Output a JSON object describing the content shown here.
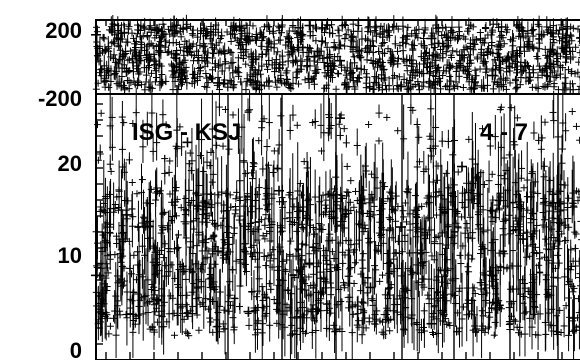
{
  "chart_data": [
    {
      "type": "scatter",
      "ylim": [
        -200,
        200
      ],
      "yticks": [
        "200",
        "-200"
      ],
      "marker": "plus",
      "color": "#000000",
      "series": [
        {
          "x": [
            0,
            60,
            120,
            180,
            240,
            300,
            360,
            420,
            480,
            540,
            600,
            660,
            720,
            780,
            840,
            900,
            960
          ],
          "y": [
            120,
            -80,
            150,
            30,
            -140,
            90,
            -60,
            170,
            -20,
            60,
            -160,
            100,
            10,
            -100,
            140,
            -40,
            80
          ]
        }
      ]
    },
    {
      "type": "scatter",
      "ylim": [
        0,
        22
      ],
      "yticks": [
        "20",
        "10",
        "0"
      ],
      "marker": "plus",
      "color": "#000000",
      "annotations": [
        "ISG - KSJ",
        "4 - 7"
      ],
      "series": [
        {
          "x": [
            0,
            60,
            120,
            180,
            240,
            300,
            360,
            420,
            480,
            540,
            600,
            660,
            720,
            780,
            840,
            900,
            960
          ],
          "y": [
            7,
            12,
            5,
            18,
            9,
            4,
            14,
            8,
            20,
            6,
            11,
            3,
            16,
            7,
            10,
            13,
            5
          ]
        }
      ]
    }
  ]
}
